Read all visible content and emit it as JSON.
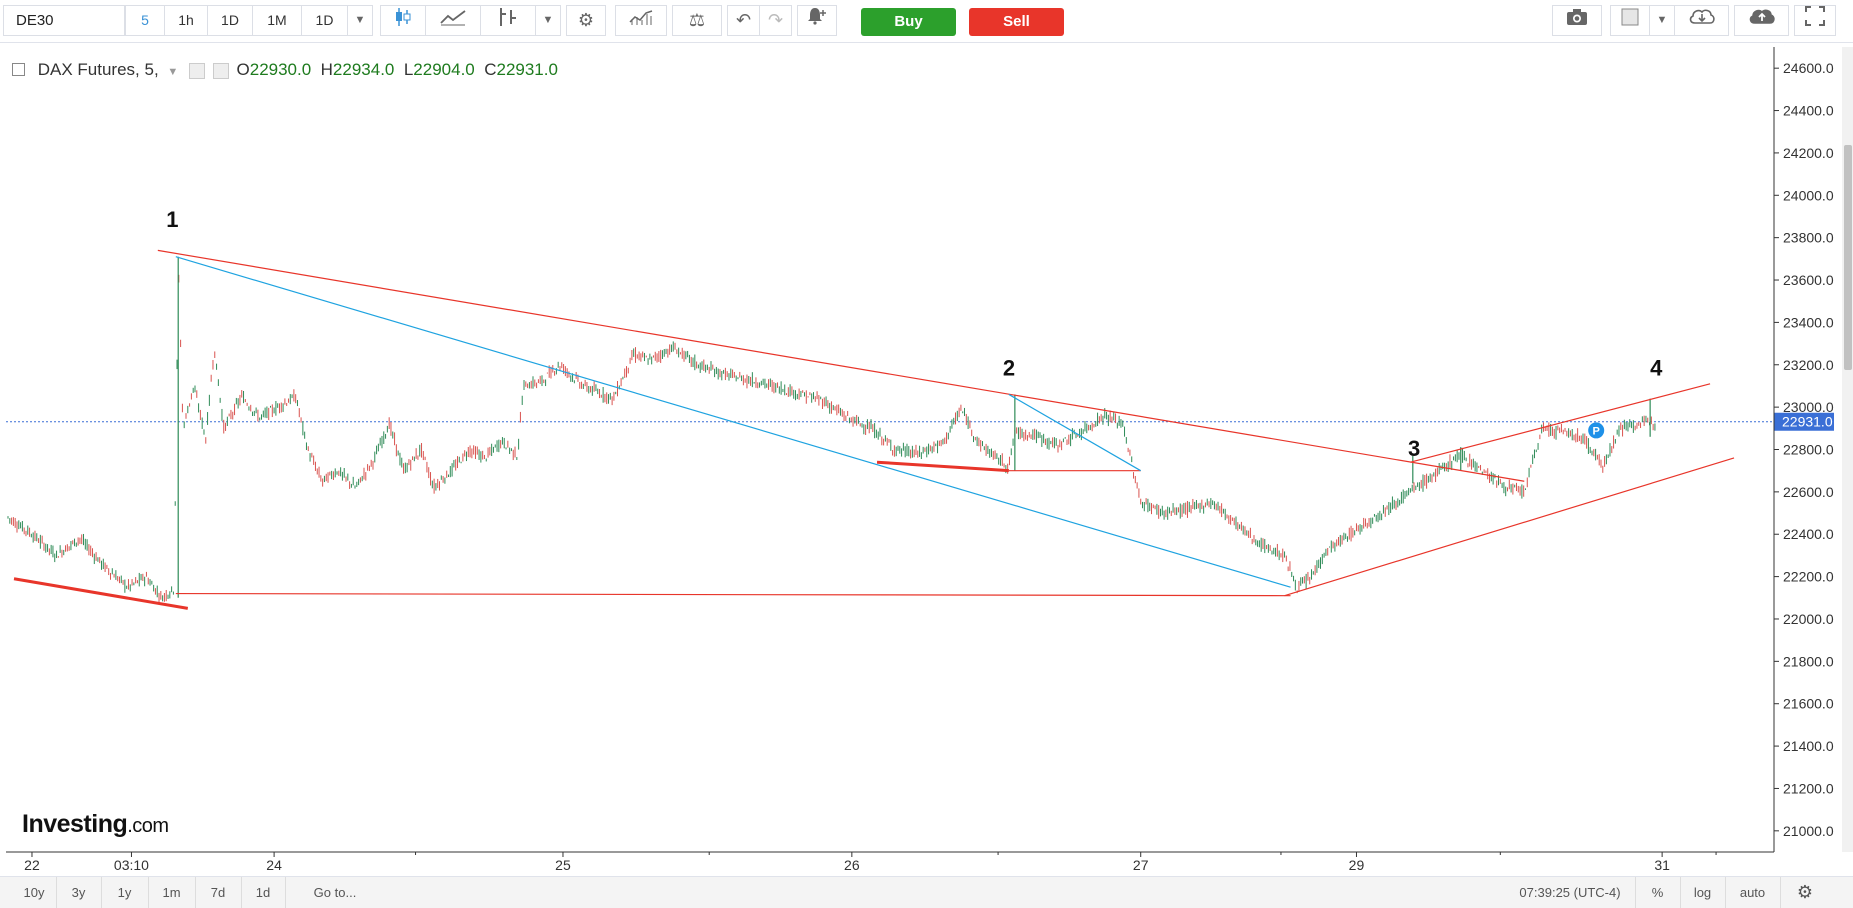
{
  "toolbar": {
    "symbol": "DE30",
    "timeframes": [
      "5",
      "1h",
      "1D",
      "1M",
      "1D"
    ],
    "active_timeframe": "5",
    "buy_label": "Buy",
    "sell_label": "Sell",
    "colors": {
      "buy": "#2ca02c",
      "sell": "#e8352a",
      "accent": "#3a92d6"
    }
  },
  "legend": {
    "title": "DAX Futures, 5,",
    "open_label": "O",
    "open": "22930.0",
    "high_label": "H",
    "high": "22934.0",
    "low_label": "L",
    "low": "22904.0",
    "close_label": "C",
    "close": "22931.0"
  },
  "watermark": {
    "brand": "Investing",
    "suffix": ".com"
  },
  "bottom_bar": {
    "ranges": [
      "10y",
      "3y",
      "1y",
      "1m",
      "7d",
      "1d"
    ],
    "goto_label": "Go to...",
    "time": "07:39:25 (UTC-4)",
    "percent_label": "%",
    "log_label": "log",
    "auto_label": "auto"
  },
  "chart_data": {
    "type": "candlestick",
    "instrument": "DAX Futures",
    "interval": "5",
    "y_axis": {
      "ticks": [
        21000,
        21200,
        21400,
        21600,
        21800,
        22000,
        22200,
        22400,
        22600,
        22800,
        23000,
        23200,
        23400,
        23600,
        23800,
        24000,
        24200,
        24400,
        24600
      ],
      "tick_labels": [
        "21000.0",
        "21200.0",
        "21400.0",
        "21600.0",
        "21800.0",
        "22000.0",
        "22200.0",
        "22400.0",
        "22600.0",
        "22800.0",
        "23000.0",
        "23200.0",
        "23400.0",
        "23600.0",
        "23800.0",
        "24000.0",
        "24200.0",
        "24400.0",
        "24600.0"
      ],
      "range": [
        20900,
        24700
      ]
    },
    "x_axis": {
      "tick_labels": [
        "22",
        "03:10",
        "24",
        "25",
        "26",
        "27",
        "29",
        "31"
      ],
      "range": [
        0,
        1470
      ]
    },
    "current_price": {
      "value": 22931.0,
      "label": "22931.0"
    },
    "price_path": [
      [
        0,
        22480
      ],
      [
        20,
        22400
      ],
      [
        40,
        22300
      ],
      [
        60,
        22380
      ],
      [
        80,
        22250
      ],
      [
        100,
        22150
      ],
      [
        115,
        22200
      ],
      [
        128,
        22100
      ],
      [
        138,
        22140
      ],
      [
        140,
        22700
      ],
      [
        142,
        23700
      ],
      [
        146,
        22900
      ],
      [
        155,
        23100
      ],
      [
        165,
        22850
      ],
      [
        172,
        23280
      ],
      [
        180,
        22900
      ],
      [
        195,
        23050
      ],
      [
        210,
        22950
      ],
      [
        225,
        23000
      ],
      [
        240,
        23050
      ],
      [
        250,
        22800
      ],
      [
        262,
        22650
      ],
      [
        275,
        22700
      ],
      [
        290,
        22620
      ],
      [
        305,
        22750
      ],
      [
        318,
        22920
      ],
      [
        330,
        22700
      ],
      [
        345,
        22800
      ],
      [
        355,
        22620
      ],
      [
        370,
        22700
      ],
      [
        385,
        22800
      ],
      [
        398,
        22760
      ],
      [
        412,
        22840
      ],
      [
        425,
        22770
      ],
      [
        430,
        23100
      ],
      [
        445,
        23120
      ],
      [
        460,
        23200
      ],
      [
        480,
        23100
      ],
      [
        505,
        23040
      ],
      [
        522,
        23250
      ],
      [
        535,
        23220
      ],
      [
        555,
        23280
      ],
      [
        575,
        23200
      ],
      [
        600,
        23150
      ],
      [
        625,
        23120
      ],
      [
        650,
        23080
      ],
      [
        680,
        23030
      ],
      [
        700,
        22950
      ],
      [
        720,
        22900
      ],
      [
        740,
        22800
      ],
      [
        760,
        22780
      ],
      [
        780,
        22830
      ],
      [
        795,
        22990
      ],
      [
        810,
        22830
      ],
      [
        825,
        22760
      ],
      [
        835,
        22720
      ],
      [
        840,
        22880
      ],
      [
        855,
        22870
      ],
      [
        875,
        22820
      ],
      [
        895,
        22880
      ],
      [
        915,
        22960
      ],
      [
        930,
        22920
      ],
      [
        945,
        22550
      ],
      [
        965,
        22500
      ],
      [
        985,
        22520
      ],
      [
        1005,
        22550
      ],
      [
        1025,
        22450
      ],
      [
        1045,
        22350
      ],
      [
        1065,
        22300
      ],
      [
        1075,
        22150
      ],
      [
        1085,
        22180
      ],
      [
        1100,
        22320
      ],
      [
        1120,
        22400
      ],
      [
        1140,
        22480
      ],
      [
        1160,
        22560
      ],
      [
        1175,
        22620
      ],
      [
        1195,
        22700
      ],
      [
        1212,
        22780
      ],
      [
        1230,
        22700
      ],
      [
        1250,
        22620
      ],
      [
        1265,
        22600
      ],
      [
        1280,
        22900
      ],
      [
        1300,
        22880
      ],
      [
        1315,
        22850
      ],
      [
        1330,
        22720
      ],
      [
        1345,
        22900
      ],
      [
        1360,
        22920
      ],
      [
        1375,
        22931
      ]
    ],
    "hover_candle": {
      "open": 22930.0,
      "high": 22934.0,
      "low": 22904.0,
      "close": 22931.0
    },
    "trendlines": [
      {
        "name": "upper-resistance",
        "color": "#e8352a",
        "points": [
          [
            125,
            23740
          ],
          [
            1265,
            22650
          ]
        ]
      },
      {
        "name": "wedge-upper",
        "color": "#e8352a",
        "points": [
          [
            1170,
            22740
          ],
          [
            1420,
            23110
          ]
        ]
      },
      {
        "name": "wedge-lower",
        "color": "#e8352a",
        "points": [
          [
            1065,
            22110
          ],
          [
            1440,
            22760
          ]
        ]
      },
      {
        "name": "base-line",
        "color": "#e8352a",
        "points": [
          [
            140,
            22120
          ],
          [
            1070,
            22110
          ]
        ]
      },
      {
        "name": "left-support",
        "color": "#e8352a",
        "width": 3,
        "points": [
          [
            5,
            22190
          ],
          [
            150,
            22050
          ]
        ]
      },
      {
        "name": "mid-support",
        "color": "#e8352a",
        "width": 3,
        "points": [
          [
            725,
            22740
          ],
          [
            835,
            22700
          ]
        ]
      },
      {
        "name": "mid-flat",
        "color": "#e8352a",
        "points": [
          [
            835,
            22700
          ],
          [
            945,
            22700
          ]
        ]
      },
      {
        "name": "blue-decline",
        "color": "#1fa3e0",
        "points": [
          [
            140,
            23710
          ],
          [
            1070,
            22150
          ]
        ]
      },
      {
        "name": "blue-short",
        "color": "#1fa3e0",
        "points": [
          [
            835,
            23060
          ],
          [
            945,
            22700
          ]
        ]
      }
    ],
    "annotations": [
      {
        "text": "1",
        "x": 132,
        "y": 23850
      },
      {
        "text": "2",
        "x": 830,
        "y": 23150
      },
      {
        "text": "3",
        "x": 1168,
        "y": 22770
      },
      {
        "text": "4",
        "x": 1370,
        "y": 23150
      }
    ],
    "position_marker": {
      "text": "P",
      "x": 1325,
      "y": 22890
    }
  }
}
